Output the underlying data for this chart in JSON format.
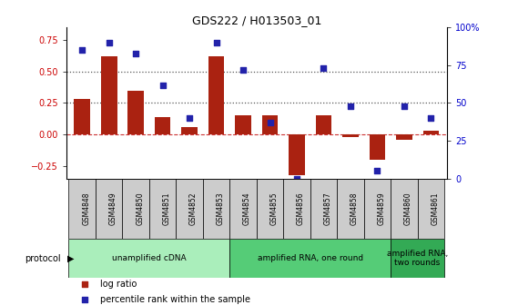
{
  "title": "GDS222 / H013503_01",
  "samples": [
    "GSM4848",
    "GSM4849",
    "GSM4850",
    "GSM4851",
    "GSM4852",
    "GSM4853",
    "GSM4854",
    "GSM4855",
    "GSM4856",
    "GSM4857",
    "GSM4858",
    "GSM4859",
    "GSM4860",
    "GSM4861"
  ],
  "log_ratio": [
    0.28,
    0.62,
    0.35,
    0.14,
    0.06,
    0.62,
    0.15,
    0.15,
    -0.32,
    0.15,
    -0.02,
    -0.2,
    -0.04,
    0.03
  ],
  "percentile": [
    85,
    90,
    83,
    62,
    40,
    90,
    72,
    37,
    0,
    73,
    48,
    5,
    48,
    40
  ],
  "bar_color": "#AA2211",
  "dot_color": "#2222AA",
  "ylim_left": [
    -0.35,
    0.85
  ],
  "ylim_right": [
    0,
    100
  ],
  "yticks_left": [
    -0.25,
    0.0,
    0.25,
    0.5,
    0.75
  ],
  "yticks_right": [
    0,
    25,
    50,
    75,
    100
  ],
  "ytick_labels_right": [
    "0",
    "25",
    "50",
    "75",
    "100%"
  ],
  "hlines": [
    0.5,
    0.25
  ],
  "hline_zero_color": "#CC3333",
  "hline_dot_color": "#555555",
  "protocol_groups": [
    {
      "label": "unamplified cDNA",
      "start": 0,
      "end": 5,
      "color": "#AAEEBB"
    },
    {
      "label": "amplified RNA, one round",
      "start": 6,
      "end": 11,
      "color": "#55CC77"
    },
    {
      "label": "amplified RNA,\ntwo rounds",
      "start": 12,
      "end": 13,
      "color": "#33AA55"
    }
  ],
  "legend_items": [
    {
      "label": "log ratio",
      "color": "#AA2211"
    },
    {
      "label": "percentile rank within the sample",
      "color": "#2222AA"
    }
  ],
  "background_color": "#ffffff",
  "plot_bg_color": "#ffffff",
  "tick_label_color_left": "#CC0000",
  "tick_label_color_right": "#0000CC",
  "xtick_bg_color": "#CCCCCC"
}
